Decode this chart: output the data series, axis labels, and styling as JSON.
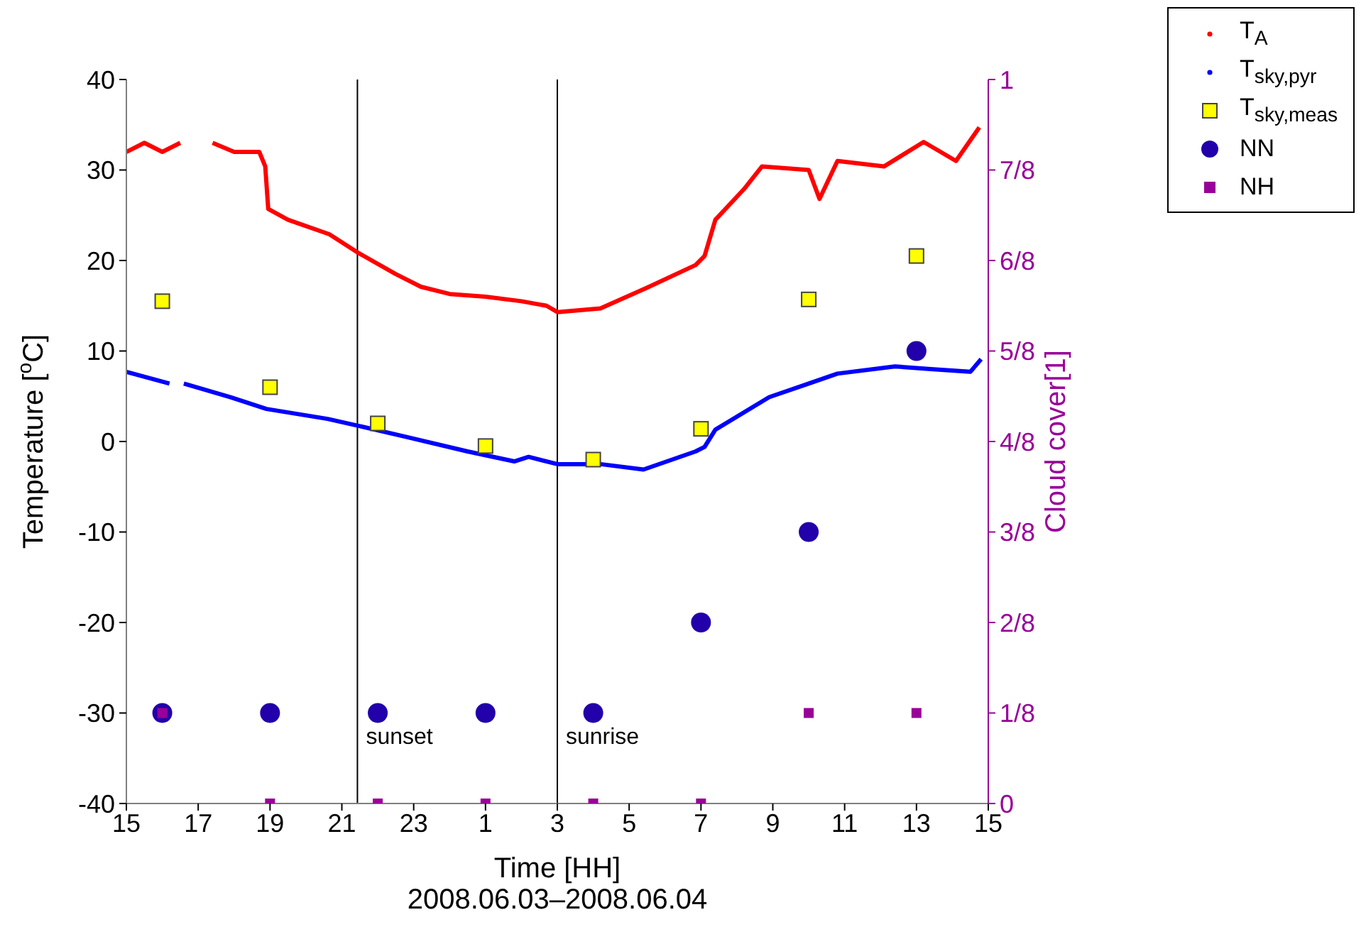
{
  "chart_data": {
    "type": "scatter",
    "xlabel": "Time [HH]",
    "ylabel": "Temperature [$^{o}$C]",
    "y2label": "Cloud cover[1]",
    "annotations": [
      "2008.06.03–2008.06.04"
    ],
    "x": [
      "2008-06-03T16:00",
      "2008-06-03T19:00",
      "2008-06-03T22:00",
      "2008-06-04T01:00",
      "2008-06-04T04:00",
      "2008-06-04T07:00",
      "2008-06-04T10:00",
      "2008-06-04T13:00"
    ],
    "xlim": [
      "2008-06-03T15:00",
      "2008-06-04T15:00"
    ],
    "xticks": [
      {
        "value": "2008-06-03T15:00",
        "label": "15"
      },
      {
        "value": "2008-06-03T17:00",
        "label": "17"
      },
      {
        "value": "2008-06-03T19:00",
        "label": "19"
      },
      {
        "value": "2008-06-03T21:00",
        "label": "21"
      },
      {
        "value": "2008-06-03T23:00",
        "label": "23"
      },
      {
        "value": "2008-06-04T01:00",
        "label": "1"
      },
      {
        "value": "2008-06-04T03:00",
        "label": "3"
      },
      {
        "value": "2008-06-04T05:00",
        "label": "5"
      },
      {
        "value": "2008-06-04T07:00",
        "label": "7"
      },
      {
        "value": "2008-06-04T09:00",
        "label": "9"
      },
      {
        "value": "2008-06-04T11:00",
        "label": "11"
      },
      {
        "value": "2008-06-04T13:00",
        "label": "13"
      },
      {
        "value": "2008-06-04T15:00",
        "label": "15"
      }
    ],
    "ylim": [
      -40,
      40
    ],
    "yticks": [
      -40,
      -30,
      -20,
      -10,
      0,
      10,
      20,
      30,
      40
    ],
    "y2lim": [
      0,
      1
    ],
    "y2ticks": [
      0,
      {
        "value": 0.125,
        "label": "1/8"
      },
      {
        "value": 0.25,
        "label": "2/8"
      },
      {
        "value": 0.375,
        "label": "3/8"
      },
      {
        "value": 0.5,
        "label": "4/8"
      },
      {
        "value": 0.625,
        "label": "5/8"
      },
      {
        "value": 0.75,
        "label": "6/8"
      },
      {
        "value": 0.875,
        "label": "7/8"
      },
      1
    ],
    "legend": "top right",
    "ref_lines": [
      {
        "axis": "x",
        "value": "2008-06-03T21:26",
        "label": "sunset",
        "color": "#000000"
      },
      {
        "axis": "x",
        "value": "2008-06-04T03:00",
        "label": "sunrise",
        "color": "#000000"
      }
    ],
    "series": [
      {
        "name": "T$_{A}$",
        "type": "line",
        "marker": "none",
        "line_style": "solid",
        "color": "#ff0000",
        "x": [
          "2008-06-03T15:00",
          "2008-06-03T15:30",
          "2008-06-03T16:00",
          "2008-06-03T16:30",
          "2008-06-03T16:54",
          "2008-06-03T17:24",
          "2008-06-03T18:00",
          "2008-06-03T18:42",
          "2008-06-03T18:52",
          "2008-06-03T18:57",
          "2008-06-03T19:30",
          "2008-06-03T20:39",
          "2008-06-03T21:26",
          "2008-06-03T22:30",
          "2008-06-03T23:12",
          "2008-06-04T00:00",
          "2008-06-04T01:00",
          "2008-06-04T02:00",
          "2008-06-04T02:42",
          "2008-06-04T03:00",
          "2008-06-04T04:12",
          "2008-06-04T05:30",
          "2008-06-04T06:51",
          "2008-06-04T07:06",
          "2008-06-04T07:24",
          "2008-06-04T08:12",
          "2008-06-04T08:42",
          "2008-06-04T10:00",
          "2008-06-04T10:18",
          "2008-06-04T10:48",
          "2008-06-04T12:06",
          "2008-06-04T13:12",
          "2008-06-04T14:06",
          "2008-06-04T14:45"
        ],
        "values": [
          32,
          33,
          32,
          33,
          null,
          33,
          32,
          32,
          30.4,
          25.7,
          24.5,
          22.9,
          20.9,
          18.5,
          17.1,
          16.3,
          16,
          15.5,
          15,
          14.3,
          14.7,
          17,
          19.5,
          20.5,
          24.5,
          27.9,
          30.4,
          30,
          26.8,
          31,
          30.4,
          33.1,
          31,
          34.7
        ]
      },
      {
        "name": "T$_{sky,pyr}$",
        "type": "line",
        "marker": "none",
        "line_style": "solid",
        "color": "#0000ff",
        "x": [
          "2008-06-03T15:00",
          "2008-06-03T16:12",
          "2008-06-03T16:24",
          "2008-06-03T16:36",
          "2008-06-03T17:54",
          "2008-06-03T18:54",
          "2008-06-03T20:36",
          "2008-06-03T21:30",
          "2008-06-03T22:48",
          "2008-06-04T00:30",
          "2008-06-04T01:48",
          "2008-06-04T02:12",
          "2008-06-04T03:00",
          "2008-06-04T04:12",
          "2008-06-04T05:24",
          "2008-06-04T06:51",
          "2008-06-04T07:06",
          "2008-06-04T07:24",
          "2008-06-04T08:54",
          "2008-06-04T10:00",
          "2008-06-04T10:48",
          "2008-06-04T12:24",
          "2008-06-04T13:24",
          "2008-06-04T14:30",
          "2008-06-04T14:48"
        ],
        "values": [
          7.7,
          6.4,
          null,
          6.4,
          4.9,
          3.6,
          2.5,
          1.7,
          0.5,
          -1.1,
          -2.2,
          -1.7,
          -2.5,
          -2.5,
          -3.1,
          -1.1,
          -0.6,
          1.3,
          4.9,
          6.4,
          7.5,
          8.3,
          8,
          7.7,
          9.1
        ]
      },
      {
        "name": "T$_{sky,meas}$",
        "marker": "square",
        "color": "#ffff00",
        "values": [
          15.5,
          6,
          2,
          -0.5,
          -2,
          1.4,
          15.7,
          20.5
        ]
      },
      {
        "name": "NN",
        "marker": "circle",
        "axis": "y2",
        "color": "#2200aa",
        "values": [
          0.125,
          0.125,
          0.125,
          0.125,
          0.125,
          0.25,
          0.375,
          0.625
        ]
      },
      {
        "name": "NH",
        "marker": "square",
        "axis": "y2",
        "color": "#990099",
        "values": [
          0.125,
          0,
          0,
          0,
          0,
          0,
          0.125,
          0.125
        ]
      }
    ]
  }
}
